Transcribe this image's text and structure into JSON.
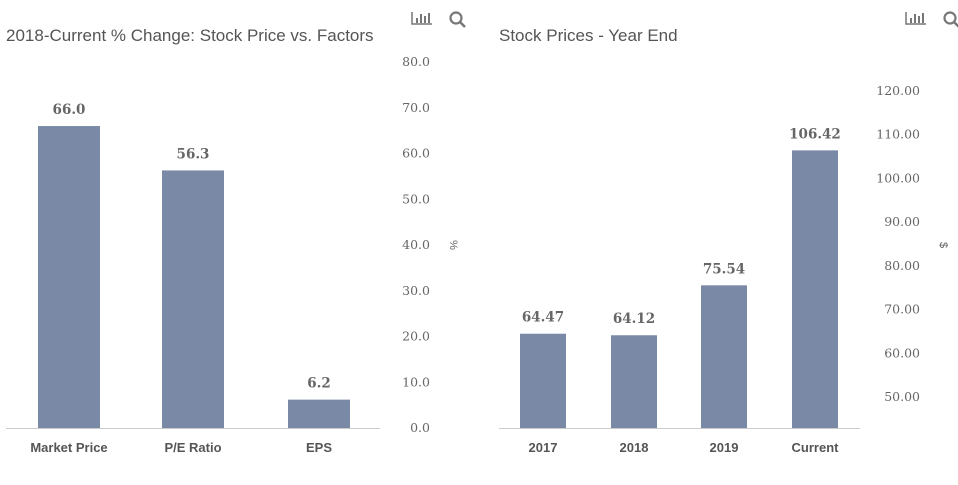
{
  "toolbar_icons": [
    "bar-chart-icon",
    "search-icon"
  ],
  "colors": {
    "bar": "#7a8aa6",
    "axis": "#cccccc",
    "icon": "#777777"
  },
  "chart_data": [
    {
      "type": "bar",
      "title": "2018-Current % Change: Stock Price vs. Factors",
      "categories": [
        "Market Price",
        "P/E Ratio",
        "EPS"
      ],
      "values": [
        66.0,
        56.3,
        6.2
      ],
      "data_labels": [
        "66.0",
        "56.3",
        "6.2"
      ],
      "ylabel": "%",
      "ylim": [
        0,
        80
      ],
      "yticks": [
        "0.0",
        "10.0",
        "20.0",
        "30.0",
        "40.0",
        "50.0",
        "60.0",
        "70.0",
        "80.0"
      ],
      "y_axis_side": "right",
      "grid": false
    },
    {
      "type": "bar",
      "title": "Stock Prices - Year End",
      "categories": [
        "2017",
        "2018",
        "2019",
        "Current"
      ],
      "values": [
        64.47,
        64.12,
        75.54,
        106.42
      ],
      "data_labels": [
        "64.47",
        "64.12",
        "75.54",
        "106.42"
      ],
      "ylabel": "$",
      "ylim": [
        42.9,
        120
      ],
      "yticks": [
        "50.00",
        "60.00",
        "70.00",
        "80.00",
        "90.00",
        "100.00",
        "110.00",
        "120.00"
      ],
      "y_axis_side": "right",
      "grid": false
    }
  ]
}
